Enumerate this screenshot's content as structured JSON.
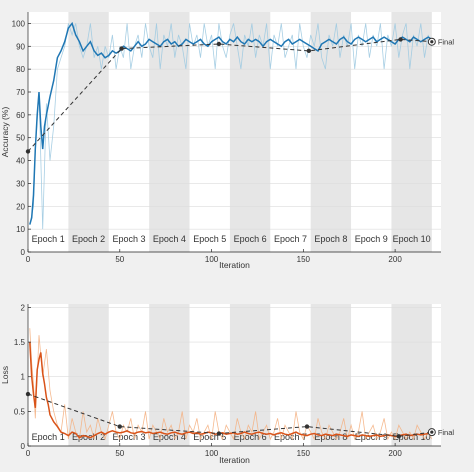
{
  "colors": {
    "background": "#f0f0f0",
    "plot_bg": "#ffffff",
    "epoch_shade": "#e6e6e6",
    "accuracy_raw": "#9ecae1",
    "accuracy_smooth": "#1f77b4",
    "loss_raw": "#f4b183",
    "loss_smooth": "#d95319",
    "validation": "#333333",
    "text": "#333333"
  },
  "chart_data": [
    {
      "type": "line",
      "ylabel": "Accuracy (%)",
      "xlabel": "Iteration",
      "xlim": [
        0,
        225
      ],
      "ylim": [
        0,
        105
      ],
      "xticks": [
        0,
        50,
        100,
        150,
        200
      ],
      "yticks": [
        0,
        10,
        20,
        30,
        40,
        50,
        60,
        70,
        80,
        90,
        100
      ],
      "epochs": [
        {
          "label": "Epoch 1",
          "start": 0,
          "end": 22
        },
        {
          "label": "Epoch 2",
          "start": 22,
          "end": 44
        },
        {
          "label": "Epoch 3",
          "start": 44,
          "end": 66
        },
        {
          "label": "Epoch 4",
          "start": 66,
          "end": 88
        },
        {
          "label": "Epoch 5",
          "start": 88,
          "end": 110
        },
        {
          "label": "Epoch 6",
          "start": 110,
          "end": 132
        },
        {
          "label": "Epoch 7",
          "start": 132,
          "end": 154
        },
        {
          "label": "Epoch 8",
          "start": 154,
          "end": 176
        },
        {
          "label": "Epoch 9",
          "start": 176,
          "end": 198
        },
        {
          "label": "Epoch 10",
          "start": 198,
          "end": 220
        }
      ],
      "series": [
        {
          "role": "raw",
          "x": [
            1,
            3,
            4,
            6,
            8,
            10,
            12,
            14,
            16,
            18,
            20,
            22,
            24,
            26,
            28,
            30,
            32,
            34,
            36,
            38,
            40,
            42,
            44,
            46,
            48,
            50,
            52,
            54,
            56,
            58,
            60,
            62,
            64,
            66,
            68,
            70,
            72,
            74,
            76,
            78,
            80,
            82,
            84,
            86,
            88,
            90,
            92,
            94,
            96,
            98,
            100,
            102,
            104,
            106,
            108,
            110,
            112,
            114,
            116,
            118,
            120,
            122,
            124,
            126,
            128,
            130,
            132,
            134,
            136,
            138,
            140,
            142,
            144,
            146,
            148,
            150,
            152,
            154,
            156,
            158,
            160,
            162,
            164,
            166,
            168,
            170,
            172,
            174,
            176,
            178,
            180,
            182,
            184,
            186,
            188,
            190,
            192,
            194,
            196,
            198,
            200,
            202,
            204,
            206,
            208,
            210,
            212,
            214,
            216,
            218,
            220
          ],
          "y": [
            12,
            20,
            45,
            70,
            10,
            65,
            40,
            55,
            80,
            85,
            90,
            100,
            95,
            100,
            90,
            85,
            90,
            100,
            85,
            90,
            80,
            90,
            85,
            95,
            80,
            90,
            85,
            100,
            80,
            90,
            95,
            85,
            100,
            90,
            85,
            100,
            80,
            95,
            90,
            100,
            85,
            95,
            90,
            80,
            100,
            90,
            95,
            85,
            100,
            90,
            95,
            80,
            100,
            90,
            85,
            95,
            100,
            90,
            80,
            95,
            90,
            100,
            85,
            95,
            90,
            100,
            80,
            95,
            90,
            100,
            85,
            90,
            95,
            80,
            100,
            90,
            85,
            95,
            90,
            100,
            85,
            80,
            95,
            90,
            100,
            85,
            95,
            90,
            100,
            80,
            95,
            90,
            100,
            85,
            95,
            90,
            100,
            80,
            95,
            90,
            100,
            85,
            95,
            100,
            80,
            95,
            90,
            100,
            85,
            95,
            90
          ]
        },
        {
          "role": "smoothed",
          "x": [
            1,
            2,
            3,
            4,
            5,
            6,
            7,
            8,
            9,
            10,
            12,
            14,
            16,
            18,
            20,
            22,
            24,
            26,
            28,
            30,
            32,
            34,
            36,
            38,
            40,
            42,
            44,
            46,
            48,
            50,
            52,
            54,
            56,
            58,
            60,
            62,
            64,
            66,
            68,
            70,
            72,
            74,
            76,
            78,
            80,
            82,
            84,
            86,
            88,
            90,
            92,
            94,
            96,
            98,
            100,
            102,
            104,
            106,
            108,
            110,
            112,
            114,
            116,
            118,
            120,
            122,
            124,
            126,
            128,
            130,
            132,
            134,
            136,
            138,
            140,
            142,
            144,
            146,
            148,
            150,
            152,
            154,
            156,
            158,
            160,
            162,
            164,
            166,
            168,
            170,
            172,
            174,
            176,
            178,
            180,
            182,
            184,
            186,
            188,
            190,
            192,
            194,
            196,
            198,
            200,
            202,
            204,
            206,
            208,
            210,
            212,
            214,
            216,
            218,
            220
          ],
          "y": [
            12,
            15,
            25,
            45,
            60,
            70,
            55,
            45,
            55,
            60,
            68,
            75,
            85,
            88,
            92,
            98,
            100,
            95,
            92,
            88,
            90,
            92,
            88,
            86,
            87,
            85,
            86,
            88,
            87,
            88,
            90,
            89,
            88,
            90,
            92,
            90,
            91,
            93,
            92,
            91,
            90,
            92,
            93,
            91,
            92,
            90,
            91,
            93,
            92,
            91,
            92,
            93,
            91,
            90,
            92,
            93,
            94,
            92,
            91,
            93,
            92,
            94,
            92,
            91,
            93,
            92,
            93,
            92,
            90,
            92,
            93,
            92,
            91,
            90,
            92,
            93,
            91,
            92,
            93,
            92,
            91,
            90,
            89,
            88,
            91,
            92,
            93,
            92,
            91,
            93,
            94,
            92,
            91,
            93,
            94,
            93,
            92,
            93,
            94,
            92,
            93,
            94,
            93,
            92,
            91,
            93,
            94,
            93,
            92,
            94,
            93,
            92,
            93,
            94,
            93
          ]
        },
        {
          "role": "validation",
          "x": [
            0,
            51,
            104,
            153,
            203,
            220
          ],
          "y": [
            44,
            89,
            91,
            88,
            93,
            92
          ]
        }
      ],
      "annotations": [
        {
          "text": "Final",
          "x": 220,
          "y": 92
        }
      ]
    },
    {
      "type": "line",
      "ylabel": "Loss",
      "xlabel": "Iteration",
      "xlim": [
        0,
        225
      ],
      "ylim": [
        0,
        2.05
      ],
      "xticks": [
        0,
        50,
        100,
        150,
        200
      ],
      "yticks": [
        0,
        0.5,
        1,
        1.5,
        2
      ],
      "ytick_labels": [
        "0",
        "0.5",
        "1",
        "1.5",
        "2"
      ],
      "epochs": [
        {
          "label": "Epoch 1",
          "start": 0,
          "end": 22
        },
        {
          "label": "Epoch 2",
          "start": 22,
          "end": 44
        },
        {
          "label": "Epoch 3",
          "start": 44,
          "end": 66
        },
        {
          "label": "Epoch 4",
          "start": 66,
          "end": 88
        },
        {
          "label": "Epoch 5",
          "start": 88,
          "end": 110
        },
        {
          "label": "Epoch 6",
          "start": 110,
          "end": 132
        },
        {
          "label": "Epoch 7",
          "start": 132,
          "end": 154
        },
        {
          "label": "Epoch 8",
          "start": 154,
          "end": 176
        },
        {
          "label": "Epoch 9",
          "start": 176,
          "end": 198
        },
        {
          "label": "Epoch 10",
          "start": 198,
          "end": 220
        }
      ],
      "series": [
        {
          "role": "raw",
          "x": [
            1,
            2,
            3,
            4,
            6,
            8,
            10,
            12,
            14,
            16,
            18,
            20,
            22,
            24,
            26,
            28,
            30,
            32,
            34,
            36,
            38,
            40,
            42,
            44,
            46,
            48,
            50,
            52,
            54,
            56,
            58,
            60,
            62,
            64,
            66,
            68,
            70,
            72,
            74,
            76,
            78,
            80,
            82,
            84,
            86,
            88,
            90,
            92,
            94,
            96,
            98,
            100,
            102,
            104,
            106,
            108,
            110,
            112,
            114,
            116,
            118,
            120,
            122,
            124,
            126,
            128,
            130,
            132,
            134,
            136,
            138,
            140,
            142,
            144,
            146,
            148,
            150,
            152,
            154,
            156,
            158,
            160,
            162,
            164,
            166,
            168,
            170,
            172,
            174,
            176,
            178,
            180,
            182,
            184,
            186,
            188,
            190,
            192,
            194,
            196,
            198,
            200,
            202,
            204,
            206,
            208,
            210,
            212,
            214,
            216,
            218,
            220
          ],
          "y": [
            1.7,
            1.2,
            0.9,
            0.4,
            1.6,
            1.0,
            1.4,
            0.8,
            0.5,
            0.3,
            0.2,
            0.6,
            0.1,
            0.4,
            0.2,
            0.1,
            0.5,
            0.2,
            0.3,
            0.1,
            0.4,
            0.2,
            0.1,
            0.3,
            0.5,
            0.2,
            0.1,
            0.3,
            0.2,
            0.4,
            0.1,
            0.3,
            0.2,
            0.5,
            0.1,
            0.3,
            0.2,
            0.1,
            0.4,
            0.2,
            0.3,
            0.1,
            0.2,
            0.5,
            0.1,
            0.3,
            0.2,
            0.4,
            0.1,
            0.2,
            0.3,
            0.1,
            0.5,
            0.2,
            0.1,
            0.3,
            0.2,
            0.1,
            0.4,
            0.2,
            0.1,
            0.3,
            0.2,
            0.5,
            0.1,
            0.2,
            0.3,
            0.1,
            0.2,
            0.4,
            0.1,
            0.3,
            0.2,
            0.1,
            0.5,
            0.2,
            0.1,
            0.3,
            0.2,
            0.1,
            0.4,
            0.2,
            0.1,
            0.3,
            0.2,
            0.1,
            0.2,
            0.4,
            0.1,
            0.3,
            0.1,
            0.2,
            0.5,
            0.1,
            0.2,
            0.3,
            0.1,
            0.2,
            0.4,
            0.1,
            0.2,
            0.1,
            0.3,
            0.2,
            0.1,
            0.2,
            0.1,
            0.3,
            0.2,
            0.1,
            0.2,
            0.1
          ]
        },
        {
          "role": "smoothed",
          "x": [
            1,
            2,
            3,
            4,
            5,
            6,
            7,
            8,
            9,
            10,
            11,
            12,
            14,
            16,
            18,
            20,
            22,
            24,
            26,
            28,
            30,
            32,
            34,
            36,
            38,
            40,
            42,
            44,
            46,
            48,
            50,
            52,
            54,
            56,
            58,
            60,
            62,
            64,
            66,
            68,
            70,
            72,
            74,
            76,
            78,
            80,
            82,
            84,
            86,
            88,
            90,
            92,
            94,
            96,
            98,
            100,
            102,
            104,
            106,
            108,
            110,
            112,
            114,
            116,
            118,
            120,
            122,
            124,
            126,
            128,
            130,
            132,
            134,
            136,
            138,
            140,
            142,
            144,
            146,
            148,
            150,
            152,
            154,
            156,
            158,
            160,
            162,
            164,
            166,
            168,
            170,
            172,
            174,
            176,
            178,
            180,
            182,
            184,
            186,
            188,
            190,
            192,
            194,
            196,
            198,
            200,
            202,
            204,
            206,
            208,
            210,
            212,
            214,
            216,
            218,
            220
          ],
          "y": [
            1.5,
            1.0,
            0.75,
            0.55,
            1.1,
            1.25,
            1.35,
            1.05,
            0.9,
            0.7,
            0.6,
            0.45,
            0.35,
            0.28,
            0.2,
            0.18,
            0.15,
            0.2,
            0.18,
            0.12,
            0.15,
            0.14,
            0.12,
            0.15,
            0.18,
            0.2,
            0.17,
            0.2,
            0.22,
            0.2,
            0.19,
            0.2,
            0.22,
            0.19,
            0.18,
            0.2,
            0.21,
            0.19,
            0.2,
            0.18,
            0.19,
            0.2,
            0.18,
            0.17,
            0.19,
            0.2,
            0.18,
            0.17,
            0.19,
            0.2,
            0.18,
            0.19,
            0.17,
            0.18,
            0.2,
            0.19,
            0.17,
            0.18,
            0.19,
            0.17,
            0.18,
            0.19,
            0.17,
            0.18,
            0.2,
            0.18,
            0.17,
            0.19,
            0.2,
            0.18,
            0.17,
            0.18,
            0.16,
            0.18,
            0.19,
            0.17,
            0.16,
            0.18,
            0.2,
            0.17,
            0.16,
            0.15,
            0.17,
            0.18,
            0.16,
            0.15,
            0.17,
            0.16,
            0.15,
            0.17,
            0.16,
            0.15,
            0.14,
            0.16,
            0.15,
            0.14,
            0.16,
            0.15,
            0.14,
            0.15,
            0.16,
            0.14,
            0.15,
            0.16,
            0.15,
            0.14,
            0.15,
            0.16,
            0.17,
            0.15,
            0.16,
            0.17,
            0.16,
            0.17,
            0.18,
            0.17
          ]
        },
        {
          "role": "validation",
          "x": [
            0,
            50,
            104,
            152,
            202,
            220
          ],
          "y": [
            0.75,
            0.28,
            0.18,
            0.28,
            0.14,
            0.2
          ]
        }
      ],
      "annotations": [
        {
          "text": "Final",
          "x": 220,
          "y": 0.2
        }
      ]
    }
  ]
}
